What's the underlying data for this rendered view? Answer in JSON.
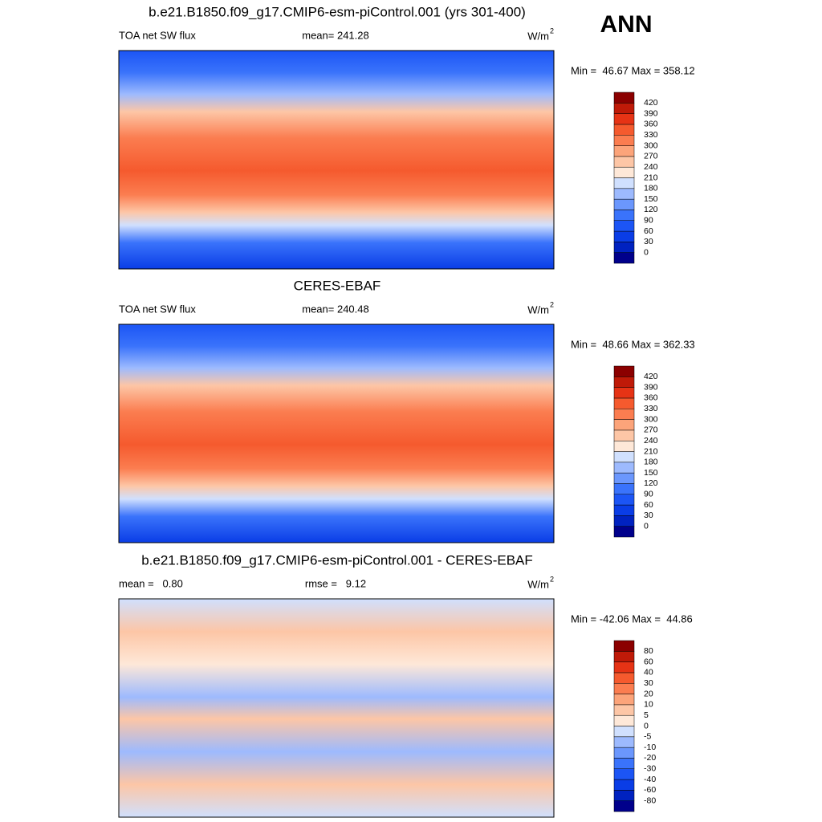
{
  "season": "ANN",
  "panels": [
    {
      "title": "b.e21.B1850.f09_g17.CMIP6-esm-piControl.001 (yrs 301-400)",
      "left_label": "TOA net SW flux",
      "center_label": "mean= 241.28",
      "units": "W/m",
      "units_sup": "2",
      "minmax": "Min =  46.67 Max = 358.12",
      "levels": [
        0,
        30,
        60,
        90,
        120,
        150,
        180,
        210,
        240,
        270,
        300,
        330,
        360,
        390,
        420
      ],
      "colors": [
        "#00008b",
        "#0022c0",
        "#0a3de6",
        "#1c55f5",
        "#3a73fb",
        "#6b97fd",
        "#9dbafe",
        "#d0e0fe",
        "#fee8d8",
        "#fdc6a6",
        "#fca47a",
        "#fb7d50",
        "#f55a2e",
        "#e63315",
        "#bf1a08",
        "#8b0000"
      ]
    },
    {
      "title": "CERES-EBAF",
      "left_label": "TOA net SW flux",
      "center_label": "mean= 240.48",
      "units": "W/m",
      "units_sup": "2",
      "minmax": "Min =  48.66 Max = 362.33",
      "levels": [
        0,
        30,
        60,
        90,
        120,
        150,
        180,
        210,
        240,
        270,
        300,
        330,
        360,
        390,
        420
      ],
      "colors": [
        "#00008b",
        "#0022c0",
        "#0a3de6",
        "#1c55f5",
        "#3a73fb",
        "#6b97fd",
        "#9dbafe",
        "#d0e0fe",
        "#fee8d8",
        "#fdc6a6",
        "#fca47a",
        "#fb7d50",
        "#f55a2e",
        "#e63315",
        "#bf1a08",
        "#8b0000"
      ]
    },
    {
      "title": "b.e21.B1850.f09_g17.CMIP6-esm-piControl.001 - CERES-EBAF",
      "left_label": "mean =   0.80",
      "center_label": "rmse =   9.12",
      "units": "W/m",
      "units_sup": "2",
      "minmax": "Min = -42.06 Max =  44.86",
      "levels": [
        -80,
        -60,
        -40,
        -30,
        -20,
        -10,
        -5,
        0,
        5,
        10,
        20,
        30,
        40,
        60,
        80
      ],
      "colors": [
        "#00008b",
        "#0022c0",
        "#0a3de6",
        "#1c55f5",
        "#3a73fb",
        "#6b97fd",
        "#9dbafe",
        "#d0e0fe",
        "#fee8d8",
        "#fdc6a6",
        "#fca47a",
        "#fb7d50",
        "#f55a2e",
        "#e63315",
        "#bf1a08",
        "#8b0000"
      ]
    }
  ]
}
